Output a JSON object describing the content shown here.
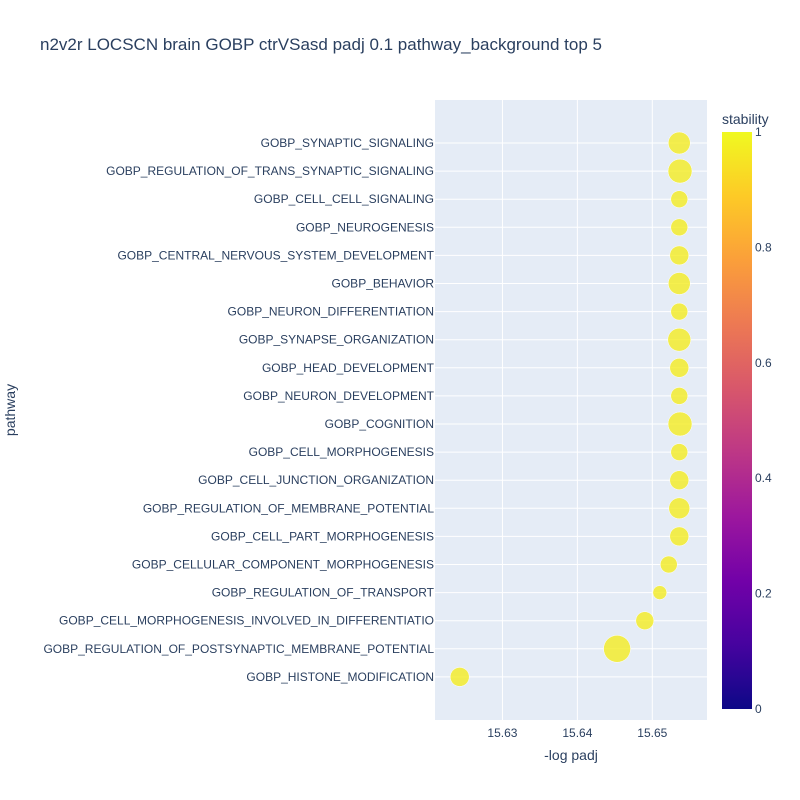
{
  "chart_data": {
    "type": "scatter",
    "title": "n2v2r LOCSCN brain GOBP ctrVSasd padj 0.1 pathway_background top 5",
    "xlabel": "-log padj",
    "ylabel": "pathway",
    "x_ticks": [
      "15.63",
      "15.64",
      "15.65"
    ],
    "x_tick_values": [
      15.63,
      15.64,
      15.65
    ],
    "xlim": [
      15.621,
      15.6573
    ],
    "colorbar": {
      "title": "stability",
      "range": [
        0,
        1
      ],
      "ticks": [
        "0",
        "0.2",
        "0.4",
        "0.6",
        "0.8",
        "1"
      ],
      "tick_values": [
        0,
        0.2,
        0.4,
        0.6,
        0.8,
        1
      ],
      "colorscale": [
        "#0d0887",
        "#46039f",
        "#7201a8",
        "#9c179e",
        "#bd3786",
        "#d8576b",
        "#ed7953",
        "#fb9f3a",
        "#fdca26",
        "#f0f921"
      ]
    },
    "grid": true,
    "legend": "none",
    "points": [
      {
        "pathway": "GOBP_SYNAPTIC_SIGNALING",
        "x": 15.6536,
        "stability": 0.97,
        "size": 22
      },
      {
        "pathway": "GOBP_REGULATION_OF_TRANS_SYNAPTIC_SIGNALING",
        "x": 15.6537,
        "stability": 0.97,
        "size": 24
      },
      {
        "pathway": "GOBP_CELL_CELL_SIGNALING",
        "x": 15.6536,
        "stability": 0.97,
        "size": 17
      },
      {
        "pathway": "GOBP_NEUROGENESIS",
        "x": 15.6536,
        "stability": 0.97,
        "size": 17
      },
      {
        "pathway": "GOBP_CENTRAL_NERVOUS_SYSTEM_DEVELOPMENT",
        "x": 15.6536,
        "stability": 0.97,
        "size": 19
      },
      {
        "pathway": "GOBP_BEHAVIOR",
        "x": 15.6536,
        "stability": 0.97,
        "size": 22
      },
      {
        "pathway": "GOBP_NEURON_DIFFERENTIATION",
        "x": 15.6536,
        "stability": 0.97,
        "size": 17
      },
      {
        "pathway": "GOBP_SYNAPSE_ORGANIZATION",
        "x": 15.6536,
        "stability": 0.97,
        "size": 23
      },
      {
        "pathway": "GOBP_HEAD_DEVELOPMENT",
        "x": 15.6536,
        "stability": 0.97,
        "size": 19
      },
      {
        "pathway": "GOBP_NEURON_DEVELOPMENT",
        "x": 15.6536,
        "stability": 0.97,
        "size": 17
      },
      {
        "pathway": "GOBP_COGNITION",
        "x": 15.6537,
        "stability": 0.97,
        "size": 24
      },
      {
        "pathway": "GOBP_CELL_MORPHOGENESIS",
        "x": 15.6536,
        "stability": 0.97,
        "size": 17
      },
      {
        "pathway": "GOBP_CELL_JUNCTION_ORGANIZATION",
        "x": 15.6536,
        "stability": 0.97,
        "size": 19
      },
      {
        "pathway": "GOBP_REGULATION_OF_MEMBRANE_POTENTIAL",
        "x": 15.6536,
        "stability": 0.97,
        "size": 21
      },
      {
        "pathway": "GOBP_CELL_PART_MORPHOGENESIS",
        "x": 15.6536,
        "stability": 0.97,
        "size": 19
      },
      {
        "pathway": "GOBP_CELLULAR_COMPONENT_MORPHOGENESIS",
        "x": 15.6522,
        "stability": 0.97,
        "size": 17
      },
      {
        "pathway": "GOBP_REGULATION_OF_TRANSPORT",
        "x": 15.651,
        "stability": 0.97,
        "size": 14
      },
      {
        "pathway": "GOBP_CELL_MORPHOGENESIS_INVOLVED_IN_DIFFERENTIATIO",
        "x": 15.649,
        "stability": 0.97,
        "size": 18
      },
      {
        "pathway": "GOBP_REGULATION_OF_POSTSYNAPTIC_MEMBRANE_POTENTIAL",
        "x": 15.6453,
        "stability": 0.97,
        "size": 27
      },
      {
        "pathway": "GOBP_HISTONE_MODIFICATION",
        "x": 15.6243,
        "stability": 0.97,
        "size": 19
      }
    ]
  }
}
